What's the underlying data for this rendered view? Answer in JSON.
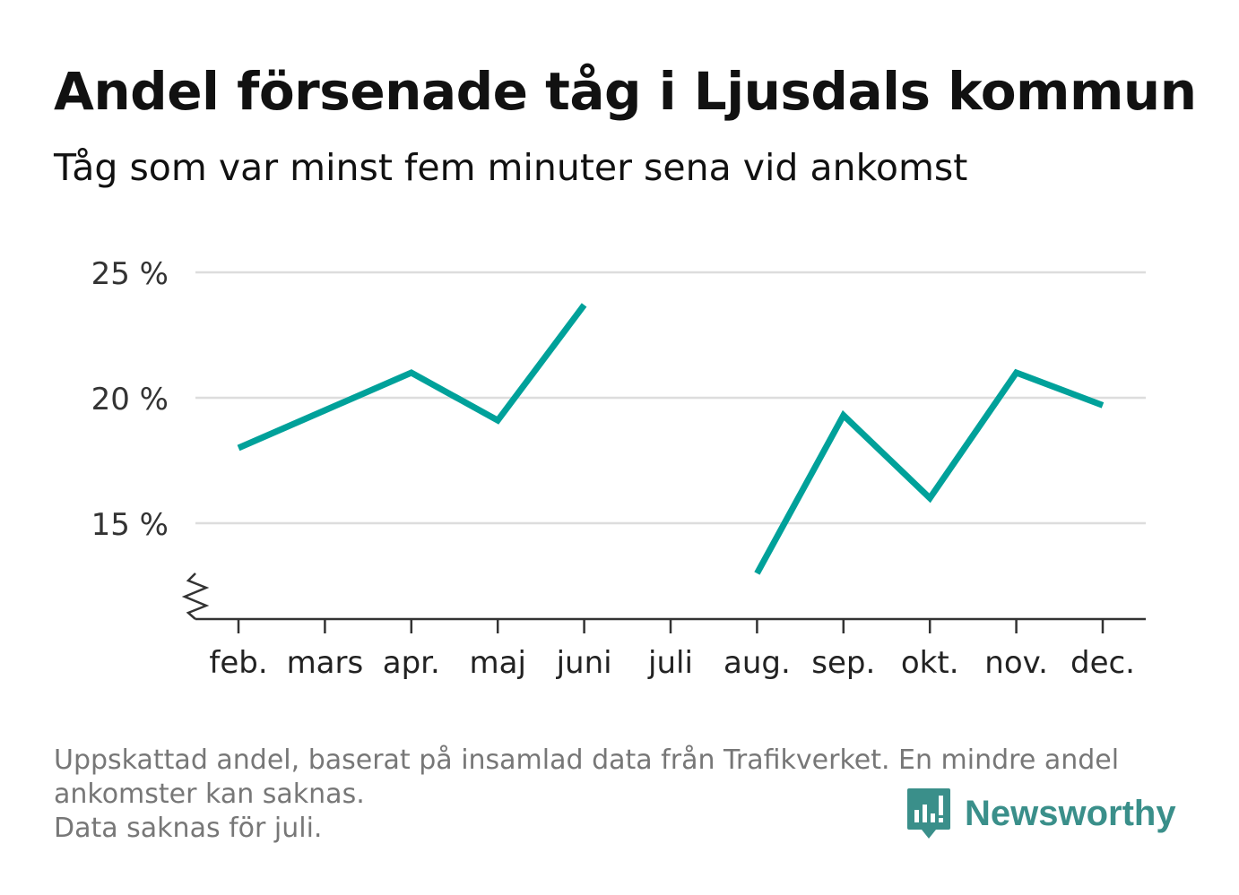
{
  "title": "Andel försenade tåg i Ljusdals kommun",
  "subtitle": "Tåg som var minst fem minuter sena vid ankomst",
  "footer": {
    "line1": "Uppskattad andel, baserat på insamlad data från Trafikverket. En mindre andel",
    "line2": "ankomster kan saknas.",
    "line3": "Data saknas för juli."
  },
  "brand": {
    "name": "Newsworthy",
    "color": "#3a8f8a"
  },
  "chart_data": {
    "type": "line",
    "categories": [
      "feb.",
      "mars",
      "apr.",
      "maj",
      "juni",
      "juli",
      "aug.",
      "sep.",
      "okt.",
      "nov.",
      "dec."
    ],
    "series": [
      {
        "values": [
          18.0,
          19.5,
          21.0,
          19.1,
          23.7,
          null,
          13.0,
          19.3,
          16.0,
          21.0,
          19.7
        ]
      }
    ],
    "yticks": [
      15,
      20,
      25
    ],
    "ytick_labels": [
      "15 %",
      "20 %",
      "25 %"
    ],
    "ylim": [
      11.2,
      25
    ],
    "y_axis_break": true,
    "grid": true,
    "line_color": "#00a19a",
    "grid_color": "#dddddd"
  }
}
